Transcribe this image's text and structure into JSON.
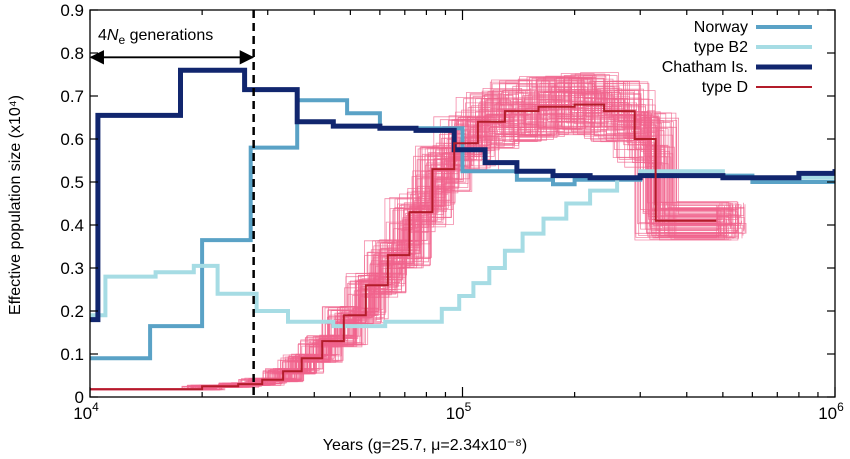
{
  "chart_data": {
    "type": "line",
    "step": true,
    "xscale": "log",
    "xlim": [
      10000,
      1000000
    ],
    "ylim": [
      0,
      0.9
    ],
    "xlabel": "Years (g=25.7, μ=2.34x10⁻⁸)",
    "ylabel": "Effective population size (x10⁴)",
    "x_ticks": [
      {
        "value": 10000,
        "base": "10",
        "exp": "4"
      },
      {
        "value": 100000,
        "base": "10",
        "exp": "5"
      },
      {
        "value": 1000000,
        "base": "10",
        "exp": "6"
      }
    ],
    "y_ticks": [
      {
        "value": 0,
        "label": "0"
      },
      {
        "value": 0.1,
        "label": "0.1"
      },
      {
        "value": 0.2,
        "label": "0.2"
      },
      {
        "value": 0.3,
        "label": "0.3"
      },
      {
        "value": 0.4,
        "label": "0.4"
      },
      {
        "value": 0.5,
        "label": "0.5"
      },
      {
        "value": 0.6,
        "label": "0.6"
      },
      {
        "value": 0.7,
        "label": "0.7"
      },
      {
        "value": 0.8,
        "label": "0.8"
      },
      {
        "value": 0.9,
        "label": "0.9"
      }
    ],
    "legend_position": "top-right",
    "annotation": {
      "vline_x": 27500,
      "arrow_from_x": 10000,
      "arrow_to_x": 27500,
      "arrow_y": 0.79,
      "text_prefix": "4",
      "text_n": "N",
      "text_sub": "e",
      "text_suffix": " generations"
    },
    "bootstrap": {
      "series": "type D",
      "color": "#f0638c",
      "replicates": 90
    },
    "series": [
      {
        "name": "Norway",
        "color": "#5aa2c6",
        "width": 4,
        "x": [
          10000,
          14500,
          20000,
          27000,
          36000,
          49000,
          60000,
          100000,
          140000,
          175000,
          200000,
          300000,
          600000,
          1000000
        ],
        "y": [
          0.09,
          0.165,
          0.365,
          0.58,
          0.69,
          0.66,
          0.625,
          0.525,
          0.505,
          0.495,
          0.505,
          0.515,
          0.5,
          0.5
        ]
      },
      {
        "name": "type B2",
        "color": "#a6dce4",
        "width": 4,
        "x": [
          10000,
          11000,
          15000,
          19000,
          22000,
          28000,
          34000,
          45000,
          62000,
          80000,
          88000,
          98000,
          107000,
          118000,
          130000,
          145000,
          165000,
          190000,
          220000,
          260000,
          300000,
          500000,
          1000000
        ],
        "y": [
          0.19,
          0.28,
          0.29,
          0.305,
          0.24,
          0.2,
          0.175,
          0.165,
          0.175,
          0.175,
          0.205,
          0.235,
          0.265,
          0.3,
          0.34,
          0.38,
          0.415,
          0.45,
          0.48,
          0.51,
          0.525,
          0.51,
          0.51
        ]
      },
      {
        "name": "Chatham Is.",
        "color": "#11266e",
        "width": 5,
        "x": [
          10000,
          10500,
          17500,
          26000,
          36000,
          45000,
          60000,
          75000,
          95000,
          115000,
          140000,
          175000,
          220000,
          300000,
          500000,
          800000,
          1000000
        ],
        "y": [
          0.18,
          0.655,
          0.76,
          0.715,
          0.64,
          0.63,
          0.625,
          0.62,
          0.575,
          0.545,
          0.525,
          0.515,
          0.51,
          0.515,
          0.51,
          0.52,
          0.53
        ]
      },
      {
        "name": "type D",
        "color": "#b31c2a",
        "width": 2,
        "x": [
          10000,
          20000,
          25000,
          29000,
          33000,
          37000,
          42000,
          48000,
          55000,
          63000,
          72000,
          83000,
          95000,
          110000,
          130000,
          160000,
          200000,
          240000,
          290000,
          330000,
          480000
        ],
        "y": [
          0.018,
          0.025,
          0.03,
          0.04,
          0.06,
          0.09,
          0.13,
          0.19,
          0.26,
          0.33,
          0.43,
          0.53,
          0.59,
          0.64,
          0.665,
          0.675,
          0.68,
          0.665,
          0.6,
          0.41,
          0.41
        ]
      }
    ]
  }
}
